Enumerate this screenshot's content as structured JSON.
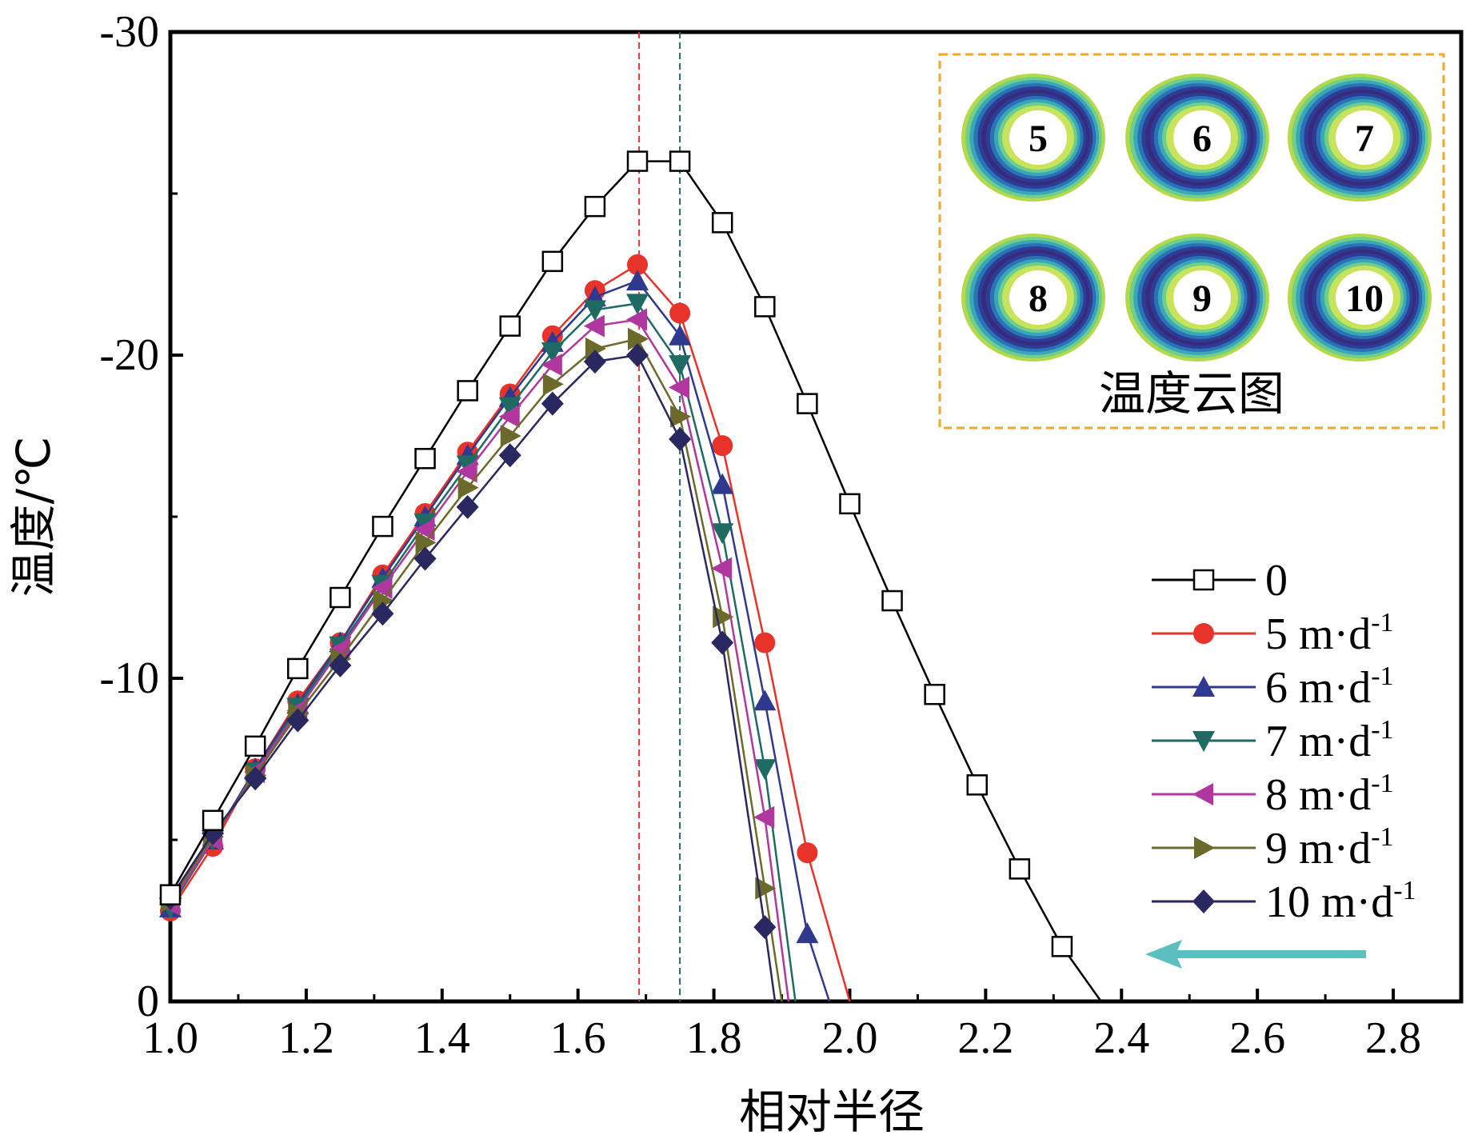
{
  "chart_data": {
    "type": "line",
    "xlabel": "相对半径",
    "ylabel": "温度/℃",
    "xlim": [
      1.0,
      2.9
    ],
    "ylim": [
      0,
      -30
    ],
    "x_ticks": [
      "1.0",
      "1.2",
      "1.4",
      "1.6",
      "1.8",
      "2.0",
      "2.2",
      "2.4",
      "2.6",
      "2.8"
    ],
    "y_ticks": [
      "0",
      "-10",
      "-20",
      "-30"
    ],
    "y_tick_values": [
      0,
      -10,
      -20,
      -30
    ],
    "legend_position": "right",
    "series": [
      {
        "name": "0",
        "color": "#000000",
        "marker": "square-open",
        "points": [
          [
            1.0,
            -3.3
          ],
          [
            1.0625,
            -5.6
          ],
          [
            1.125,
            -7.9
          ],
          [
            1.1875,
            -10.3
          ],
          [
            1.25,
            -12.5
          ],
          [
            1.3125,
            -14.7
          ],
          [
            1.375,
            -16.8
          ],
          [
            1.4375,
            -18.9
          ],
          [
            1.5,
            -20.9
          ],
          [
            1.5625,
            -22.9
          ],
          [
            1.625,
            -24.6
          ],
          [
            1.6875,
            -26.0
          ],
          [
            1.75,
            -26.0
          ],
          [
            1.8125,
            -24.1
          ],
          [
            1.875,
            -21.5
          ],
          [
            1.9375,
            -18.5
          ],
          [
            2.0,
            -15.4
          ],
          [
            2.0625,
            -12.4
          ],
          [
            2.125,
            -9.5
          ],
          [
            2.1875,
            -6.7
          ],
          [
            2.25,
            -4.1
          ],
          [
            2.3125,
            -1.7
          ],
          [
            2.37,
            0
          ]
        ]
      },
      {
        "name": "5 m·d",
        "superscript": "-1",
        "color": "#e8332a",
        "marker": "circle",
        "points": [
          [
            1.0,
            -2.8
          ],
          [
            1.0625,
            -4.8
          ],
          [
            1.125,
            -7.2
          ],
          [
            1.1875,
            -9.3
          ],
          [
            1.25,
            -11.1
          ],
          [
            1.3125,
            -13.2
          ],
          [
            1.375,
            -15.1
          ],
          [
            1.4375,
            -17.0
          ],
          [
            1.5,
            -18.8
          ],
          [
            1.5625,
            -20.6
          ],
          [
            1.625,
            -22.0
          ],
          [
            1.6875,
            -22.8
          ],
          [
            1.75,
            -21.3
          ],
          [
            1.8125,
            -17.2
          ],
          [
            1.875,
            -11.1
          ],
          [
            1.9375,
            -4.6
          ],
          [
            2.0,
            0
          ]
        ]
      },
      {
        "name": "6 m·d",
        "superscript": "-1",
        "color": "#2f3a8f",
        "marker": "triangle-up",
        "points": [
          [
            1.0,
            -2.9
          ],
          [
            1.0625,
            -5.0
          ],
          [
            1.125,
            -7.2
          ],
          [
            1.1875,
            -9.2
          ],
          [
            1.25,
            -11.1
          ],
          [
            1.3125,
            -13.1
          ],
          [
            1.375,
            -15.0
          ],
          [
            1.4375,
            -16.9
          ],
          [
            1.5,
            -18.7
          ],
          [
            1.5625,
            -20.4
          ],
          [
            1.625,
            -21.8
          ],
          [
            1.6875,
            -22.3
          ],
          [
            1.75,
            -20.6
          ],
          [
            1.8125,
            -16.0
          ],
          [
            1.875,
            -9.3
          ],
          [
            1.9375,
            -2.1
          ],
          [
            1.97,
            0
          ]
        ]
      },
      {
        "name": "7 m·d",
        "superscript": "-1",
        "color": "#1f6b63",
        "marker": "triangle-down",
        "points": [
          [
            1.0,
            -2.9
          ],
          [
            1.0625,
            -5.0
          ],
          [
            1.125,
            -7.1
          ],
          [
            1.1875,
            -9.1
          ],
          [
            1.25,
            -11.0
          ],
          [
            1.3125,
            -12.9
          ],
          [
            1.375,
            -14.8
          ],
          [
            1.4375,
            -16.6
          ],
          [
            1.5,
            -18.4
          ],
          [
            1.5625,
            -20.1
          ],
          [
            1.625,
            -21.4
          ],
          [
            1.6875,
            -21.6
          ],
          [
            1.75,
            -19.7
          ],
          [
            1.8125,
            -14.5
          ],
          [
            1.875,
            -7.2
          ],
          [
            1.92,
            0
          ]
        ]
      },
      {
        "name": "8 m·d",
        "superscript": "-1",
        "color": "#b0379e",
        "marker": "triangle-left",
        "points": [
          [
            1.0,
            -3.0
          ],
          [
            1.0625,
            -5.0
          ],
          [
            1.125,
            -7.1
          ],
          [
            1.1875,
            -9.0
          ],
          [
            1.25,
            -10.9
          ],
          [
            1.3125,
            -12.8
          ],
          [
            1.375,
            -14.6
          ],
          [
            1.4375,
            -16.4
          ],
          [
            1.5,
            -18.1
          ],
          [
            1.5625,
            -19.7
          ],
          [
            1.625,
            -20.9
          ],
          [
            1.6875,
            -21.1
          ],
          [
            1.75,
            -19.0
          ],
          [
            1.8125,
            -13.4
          ],
          [
            1.875,
            -5.7
          ],
          [
            1.91,
            0
          ]
        ]
      },
      {
        "name": "9 m·d",
        "superscript": "-1",
        "color": "#6b6a2a",
        "marker": "triangle-right",
        "points": [
          [
            1.0,
            -3.1
          ],
          [
            1.0625,
            -5.1
          ],
          [
            1.125,
            -7.0
          ],
          [
            1.1875,
            -8.9
          ],
          [
            1.25,
            -10.6
          ],
          [
            1.3125,
            -12.4
          ],
          [
            1.375,
            -14.2
          ],
          [
            1.4375,
            -15.9
          ],
          [
            1.5,
            -17.5
          ],
          [
            1.5625,
            -19.1
          ],
          [
            1.625,
            -20.2
          ],
          [
            1.6875,
            -20.5
          ],
          [
            1.75,
            -18.1
          ],
          [
            1.8125,
            -11.9
          ],
          [
            1.875,
            -3.5
          ],
          [
            1.9,
            0
          ]
        ]
      },
      {
        "name": "10 m·d",
        "superscript": "-1",
        "color": "#2a2860",
        "marker": "diamond",
        "points": [
          [
            1.0,
            -3.2
          ],
          [
            1.0625,
            -5.2
          ],
          [
            1.125,
            -6.9
          ],
          [
            1.1875,
            -8.7
          ],
          [
            1.25,
            -10.4
          ],
          [
            1.3125,
            -12.0
          ],
          [
            1.375,
            -13.7
          ],
          [
            1.4375,
            -15.3
          ],
          [
            1.5,
            -16.9
          ],
          [
            1.5625,
            -18.5
          ],
          [
            1.625,
            -19.8
          ],
          [
            1.6875,
            -20.0
          ],
          [
            1.75,
            -17.4
          ],
          [
            1.8125,
            -11.1
          ],
          [
            1.875,
            -2.3
          ],
          [
            1.89,
            0
          ]
        ]
      }
    ],
    "reference_lines": [
      {
        "x": 1.69,
        "color": "#e8332a"
      },
      {
        "x": 1.75,
        "color": "#1f6b63"
      }
    ]
  },
  "inset": {
    "title": "温度云图",
    "border_color": "#f5a623",
    "rings": [
      "5",
      "6",
      "7",
      "8",
      "9",
      "10"
    ]
  },
  "arrow": {
    "color": "#5bbfbf",
    "icon": "left-arrow"
  }
}
